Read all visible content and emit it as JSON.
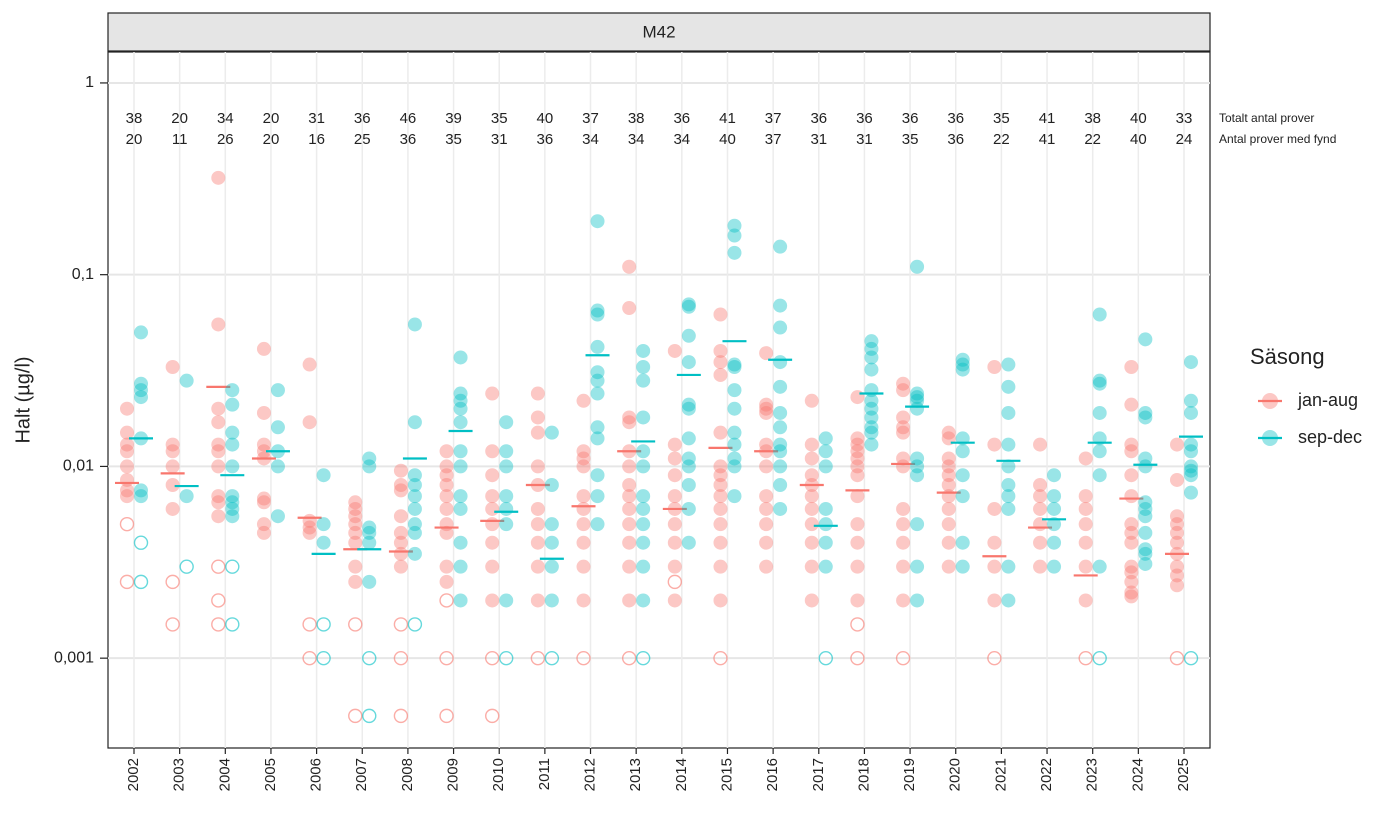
{
  "chart_data": {
    "type": "strip",
    "facet_title": "M42",
    "ylabel": "Halt (µg/l)",
    "log_scale": true,
    "grid": true,
    "legend": "right",
    "legend_title": "Säsong",
    "ylim": [
      0.00034,
      1.45
    ],
    "yticks": [
      {
        "value": 0.001,
        "label": "0,001"
      },
      {
        "value": 0.01,
        "label": "0,01"
      },
      {
        "value": 0.1,
        "label": "0,1"
      },
      1
    ],
    "categories": [
      "2002",
      "2003",
      "2004",
      "2005",
      "2006",
      "2007",
      "2008",
      "2009",
      "2010",
      "2011",
      "2012",
      "2013",
      "2014",
      "2015",
      "2016",
      "2017",
      "2018",
      "2019",
      "2020",
      "2021",
      "2022",
      "2023",
      "2024",
      "2025"
    ],
    "counts": {
      "total_label": "Totalt antal prover",
      "found_label": "Antal prover med fynd",
      "total": [
        38,
        20,
        34,
        20,
        31,
        36,
        46,
        39,
        35,
        40,
        37,
        38,
        36,
        41,
        37,
        36,
        36,
        36,
        36,
        35,
        41,
        38,
        40,
        33
      ],
      "found": [
        20,
        11,
        26,
        20,
        16,
        25,
        36,
        35,
        31,
        36,
        34,
        34,
        34,
        40,
        37,
        31,
        31,
        35,
        36,
        22,
        41,
        22,
        40,
        24
      ]
    },
    "series": [
      {
        "name": "jan-aug",
        "color": "#F8766D",
        "values": [
          [
            0.02,
            0.015,
            0.013,
            0.012,
            0.01,
            0.0085,
            0.0075,
            0.007
          ],
          [
            0.033,
            0.013,
            0.012,
            0.01,
            0.008,
            0.006
          ],
          [
            0.32,
            0.055,
            0.02,
            0.017,
            0.013,
            0.012,
            0.01,
            0.007,
            0.0065,
            0.0055
          ],
          [
            0.041,
            0.019,
            0.013,
            0.012,
            0.011,
            0.0068,
            0.0065,
            0.005,
            0.0045
          ],
          [
            0.034,
            0.017,
            0.0052,
            0.0048,
            0.0045
          ],
          [
            0.0065,
            0.006,
            0.0055,
            0.005,
            0.0045,
            0.004,
            0.003,
            0.0025
          ],
          [
            0.0095,
            0.008,
            0.0075,
            0.0055,
            0.0045,
            0.004,
            0.0035,
            0.003
          ],
          [
            0.012,
            0.01,
            0.009,
            0.008,
            0.007,
            0.006,
            0.005,
            0.0045,
            0.003,
            0.0025
          ],
          [
            0.024,
            0.012,
            0.009,
            0.007,
            0.006,
            0.005,
            0.004,
            0.003,
            0.002
          ],
          [
            0.024,
            0.018,
            0.015,
            0.01,
            0.008,
            0.006,
            0.005,
            0.004,
            0.003,
            0.002
          ],
          [
            0.022,
            0.012,
            0.011,
            0.01,
            0.007,
            0.006,
            0.005,
            0.004,
            0.003,
            0.002
          ],
          [
            0.11,
            0.067,
            0.018,
            0.017,
            0.012,
            0.01,
            0.008,
            0.007,
            0.006,
            0.005,
            0.004,
            0.003,
            0.002
          ],
          [
            0.04,
            0.013,
            0.011,
            0.009,
            0.007,
            0.006,
            0.005,
            0.004,
            0.003,
            0.002
          ],
          [
            0.062,
            0.04,
            0.035,
            0.03,
            0.015,
            0.01,
            0.009,
            0.008,
            0.007,
            0.006,
            0.005,
            0.004,
            0.003,
            0.002
          ],
          [
            0.039,
            0.021,
            0.02,
            0.019,
            0.013,
            0.012,
            0.01,
            0.007,
            0.006,
            0.005,
            0.004,
            0.003
          ],
          [
            0.022,
            0.013,
            0.011,
            0.009,
            0.008,
            0.007,
            0.006,
            0.005,
            0.004,
            0.003,
            0.002
          ],
          [
            0.023,
            0.014,
            0.013,
            0.012,
            0.011,
            0.01,
            0.009,
            0.007,
            0.005,
            0.004,
            0.003,
            0.002
          ],
          [
            0.027,
            0.025,
            0.018,
            0.016,
            0.015,
            0.011,
            0.01,
            0.006,
            0.005,
            0.004,
            0.003,
            0.002
          ],
          [
            0.015,
            0.014,
            0.011,
            0.01,
            0.009,
            0.008,
            0.007,
            0.006,
            0.005,
            0.004,
            0.003
          ],
          [
            0.033,
            0.013,
            0.006,
            0.004,
            0.003,
            0.002
          ],
          [
            0.013,
            0.008,
            0.007,
            0.006,
            0.005,
            0.004,
            0.003
          ],
          [
            0.011,
            0.007,
            0.006,
            0.005,
            0.004,
            0.003,
            0.002
          ],
          [
            0.033,
            0.021,
            0.013,
            0.012,
            0.009,
            0.007,
            0.005,
            0.0045,
            0.004,
            0.003,
            0.0028,
            0.0025,
            0.0022,
            0.0021
          ],
          [
            0.013,
            0.0085,
            0.0055,
            0.005,
            0.0045,
            0.004,
            0.0035,
            0.003,
            0.0027,
            0.0024
          ]
        ],
        "nondetect_values": [
          [
            0.005,
            0.0025
          ],
          [
            0.0025,
            0.0015
          ],
          [
            0.003,
            0.002,
            0.0015
          ],
          [],
          [
            0.0015,
            0.001
          ],
          [
            0.0015,
            0.0005
          ],
          [
            0.0015,
            0.001,
            0.0005
          ],
          [
            0.002,
            0.001,
            0.0005
          ],
          [
            0.001,
            0.0005
          ],
          [
            0.001
          ],
          [
            0.001
          ],
          [
            0.001
          ],
          [
            0.0025
          ],
          [
            0.001
          ],
          [],
          [],
          [
            0.0015,
            0.001
          ],
          [
            0.001
          ],
          [],
          [
            0.001
          ],
          [],
          [
            0.001
          ],
          [],
          [
            0.001
          ]
        ],
        "means": [
          0.0082,
          0.0092,
          0.026,
          0.011,
          0.0054,
          0.0037,
          0.0036,
          0.0048,
          0.0052,
          0.008,
          0.0062,
          0.012,
          0.006,
          0.0125,
          0.012,
          0.008,
          0.0075,
          0.0103,
          0.0073,
          0.0034,
          0.0048,
          0.0027,
          0.0068,
          0.0035
        ]
      },
      {
        "name": "sep-dec",
        "color": "#00BFC4",
        "values": [
          [
            0.05,
            0.027,
            0.025,
            0.023,
            0.014,
            0.0075,
            0.007
          ],
          [
            0.028,
            0.007
          ],
          [
            0.025,
            0.021,
            0.015,
            0.013,
            0.01,
            0.007,
            0.0065,
            0.006,
            0.0055
          ],
          [
            0.025,
            0.016,
            0.012,
            0.01,
            0.0055
          ],
          [
            0.009,
            0.005,
            0.004
          ],
          [
            0.011,
            0.01,
            0.0048,
            0.0045,
            0.004,
            0.0025
          ],
          [
            0.055,
            0.017,
            0.009,
            0.008,
            0.007,
            0.006,
            0.005,
            0.0045,
            0.0035
          ],
          [
            0.037,
            0.024,
            0.022,
            0.02,
            0.017,
            0.012,
            0.01,
            0.007,
            0.006,
            0.004,
            0.003,
            0.002
          ],
          [
            0.017,
            0.012,
            0.01,
            0.007,
            0.006,
            0.005,
            0.002
          ],
          [
            0.015,
            0.008,
            0.005,
            0.004,
            0.003,
            0.002
          ],
          [
            0.19,
            0.065,
            0.062,
            0.042,
            0.031,
            0.028,
            0.024,
            0.016,
            0.014,
            0.009,
            0.007,
            0.005
          ],
          [
            0.04,
            0.033,
            0.028,
            0.018,
            0.012,
            0.01,
            0.007,
            0.006,
            0.005,
            0.004,
            0.003,
            0.002
          ],
          [
            0.07,
            0.068,
            0.048,
            0.035,
            0.021,
            0.02,
            0.014,
            0.011,
            0.01,
            0.008,
            0.006,
            0.004
          ],
          [
            0.18,
            0.16,
            0.13,
            0.034,
            0.033,
            0.025,
            0.02,
            0.015,
            0.013,
            0.011,
            0.01,
            0.007
          ],
          [
            0.14,
            0.069,
            0.053,
            0.035,
            0.026,
            0.019,
            0.016,
            0.013,
            0.012,
            0.01,
            0.008,
            0.006
          ],
          [
            0.014,
            0.012,
            0.01,
            0.006,
            0.005,
            0.004,
            0.003
          ],
          [
            0.045,
            0.041,
            0.037,
            0.032,
            0.025,
            0.022,
            0.02,
            0.018,
            0.016,
            0.015,
            0.013
          ],
          [
            0.11,
            0.024,
            0.023,
            0.022,
            0.02,
            0.011,
            0.01,
            0.009,
            0.005,
            0.003,
            0.002
          ],
          [
            0.036,
            0.034,
            0.032,
            0.014,
            0.012,
            0.009,
            0.007,
            0.004,
            0.003
          ],
          [
            0.034,
            0.026,
            0.019,
            0.013,
            0.01,
            0.008,
            0.007,
            0.006,
            0.003,
            0.002
          ],
          [
            0.009,
            0.007,
            0.006,
            0.005,
            0.004,
            0.003
          ],
          [
            0.062,
            0.028,
            0.027,
            0.019,
            0.014,
            0.012,
            0.009,
            0.003
          ],
          [
            0.046,
            0.019,
            0.018,
            0.011,
            0.01,
            0.0065,
            0.006,
            0.0055,
            0.0045,
            0.0037,
            0.0035,
            0.0031
          ],
          [
            0.035,
            0.022,
            0.019,
            0.013,
            0.012,
            0.01,
            0.0095,
            0.009,
            0.0073
          ]
        ],
        "nondetect_values": [
          [
            0.004,
            0.0025
          ],
          [
            0.003
          ],
          [
            0.003,
            0.0015
          ],
          [],
          [
            0.0015,
            0.001
          ],
          [
            0.001,
            0.0005
          ],
          [
            0.0015
          ],
          [],
          [
            0.001
          ],
          [
            0.001
          ],
          [],
          [
            0.001
          ],
          [],
          [],
          [],
          [
            0.001
          ],
          [],
          [],
          [],
          [],
          [],
          [
            0.001
          ],
          [],
          [
            0.001
          ]
        ],
        "means": [
          0.014,
          0.0079,
          0.009,
          0.012,
          0.0035,
          0.0037,
          0.011,
          0.0153,
          0.0058,
          0.0033,
          0.038,
          0.0135,
          0.03,
          0.045,
          0.036,
          0.0049,
          0.024,
          0.0205,
          0.0133,
          0.0107,
          0.0053,
          0.0133,
          0.0102,
          0.0143
        ]
      }
    ]
  }
}
